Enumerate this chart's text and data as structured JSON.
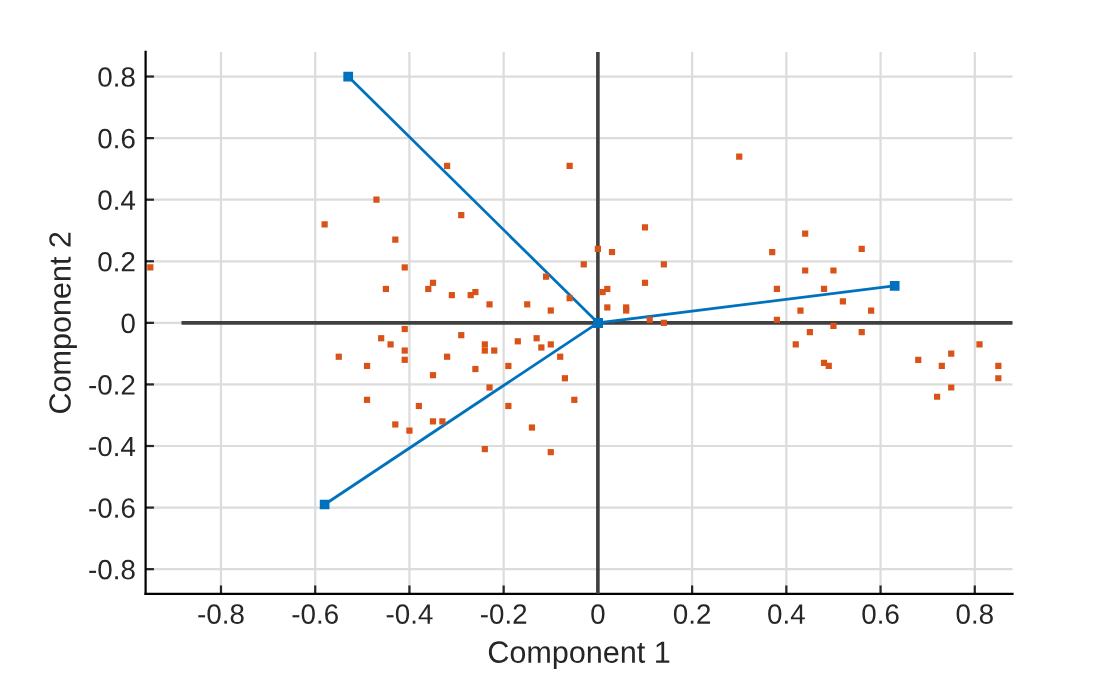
{
  "chart_data": {
    "type": "scatter",
    "xlabel": "Component 1",
    "ylabel": "Component 2",
    "xlim": [
      -0.96,
      0.88
    ],
    "ylim": [
      -0.88,
      0.88
    ],
    "xticks": [
      -0.8,
      -0.6,
      -0.4,
      -0.2,
      0,
      0.2,
      0.4,
      0.6,
      0.8
    ],
    "yticks": [
      -0.8,
      -0.6,
      -0.4,
      -0.2,
      0,
      0.2,
      0.4,
      0.6,
      0.8
    ],
    "grid": true,
    "legend": false,
    "series": [
      {
        "type": "line",
        "color": "#404040",
        "line_style": "solid",
        "x": [
          -0.88,
          0.88
        ],
        "values": [
          0,
          0
        ]
      },
      {
        "type": "line",
        "color": "#404040",
        "line_style": "solid",
        "x": [
          0,
          0
        ],
        "values": [
          -0.88,
          0.88
        ]
      },
      {
        "type": "line",
        "color": "#0072bd",
        "marker": "square",
        "line_style": "solid",
        "x": [
          0,
          -0.53
        ],
        "values": [
          0,
          0.8
        ]
      },
      {
        "type": "line",
        "color": "#0072bd",
        "marker": "square",
        "line_style": "solid",
        "x": [
          0,
          -0.58
        ],
        "values": [
          0,
          -0.59
        ]
      },
      {
        "type": "line",
        "color": "#0072bd",
        "marker": "square",
        "line_style": "solid",
        "x": [
          0,
          0.63
        ],
        "values": [
          0,
          0.12
        ]
      },
      {
        "color": "#d95319",
        "marker": "square",
        "x": [
          -0.32,
          -0.06,
          -0.47,
          -0.29,
          -0.58,
          -0.43,
          0.0,
          -0.95,
          -0.41,
          -0.03,
          -0.11,
          -0.35,
          -0.45,
          -0.36,
          -0.31,
          -0.27,
          -0.26,
          -0.06,
          -0.23,
          -0.15,
          -0.1,
          -0.41,
          -0.46,
          -0.29,
          -0.44,
          -0.41,
          -0.24,
          -0.24,
          -0.22,
          -0.17,
          -0.13,
          -0.12,
          -0.1,
          -0.55,
          -0.32,
          -0.08,
          -0.49,
          -0.41,
          -0.26,
          -0.19,
          -0.35,
          -0.07,
          -0.23,
          -0.49,
          -0.38,
          -0.19,
          -0.05,
          -0.35,
          -0.33,
          -0.43,
          -0.14,
          -0.4,
          -0.24,
          -0.1,
          0.3,
          0.1,
          0.44,
          0.03,
          0.37,
          0.56,
          0.14,
          0.44,
          0.5,
          0.1,
          0.48,
          0.01,
          0.02,
          0.38,
          0.02,
          0.06,
          0.06,
          0.52,
          0.43,
          0.58,
          0.38,
          0.11,
          0.14,
          0.45,
          0.5,
          0.56,
          0.42,
          0.48,
          0.49,
          0.68,
          0.73,
          0.75,
          0.81,
          0.85,
          0.85,
          0.72,
          0.75
        ],
        "values": [
          0.51,
          0.51,
          0.4,
          0.35,
          0.32,
          0.27,
          0.24,
          0.18,
          0.18,
          0.19,
          0.15,
          0.13,
          0.11,
          0.11,
          0.09,
          0.09,
          0.1,
          0.08,
          0.06,
          0.06,
          0.04,
          -0.02,
          -0.05,
          -0.04,
          -0.07,
          -0.09,
          -0.07,
          -0.09,
          -0.09,
          -0.06,
          -0.05,
          -0.08,
          -0.07,
          -0.11,
          -0.11,
          -0.11,
          -0.14,
          -0.12,
          -0.15,
          -0.14,
          -0.17,
          -0.18,
          -0.21,
          -0.25,
          -0.27,
          -0.27,
          -0.25,
          -0.32,
          -0.32,
          -0.33,
          -0.34,
          -0.35,
          -0.41,
          -0.42,
          0.54,
          0.31,
          0.29,
          0.23,
          0.23,
          0.24,
          0.19,
          0.17,
          0.17,
          0.13,
          0.11,
          0.1,
          0.11,
          0.11,
          0.05,
          0.05,
          0.04,
          0.07,
          0.04,
          0.04,
          0.01,
          0.01,
          0.0,
          -0.03,
          -0.01,
          -0.03,
          -0.07,
          -0.13,
          -0.14,
          -0.12,
          -0.14,
          -0.1,
          -0.07,
          -0.14,
          -0.18,
          -0.24,
          -0.21
        ]
      }
    ]
  }
}
